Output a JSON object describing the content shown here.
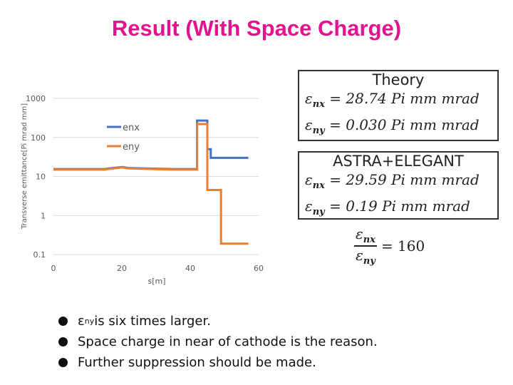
{
  "page": {
    "title": "Result (With Space Charge)"
  },
  "theory": {
    "title": "Theory",
    "rows": [
      {
        "sym": "ε",
        "sub": "nx",
        "rhs": "= 28.74 Pi mm mrad"
      },
      {
        "sym": "ε",
        "sub": "ny",
        "rhs": "= 0.030 Pi mm mrad"
      }
    ]
  },
  "astra": {
    "title": "ASTRA+ELEGANT",
    "rows": [
      {
        "sym": "ε",
        "sub": "nx",
        "rhs": "= 29.59 Pi mm mrad"
      },
      {
        "sym": "ε",
        "sub": "ny",
        "rhs": "= 0.19 Pi mm mrad"
      }
    ]
  },
  "ratio": {
    "num_sym": "ε",
    "num_sub": "nx",
    "den_sym": "ε",
    "den_sub": "ny",
    "rhs": "= 160"
  },
  "bullets": {
    "b1_sym": "ε",
    "b1_sub": "ny",
    "b1_text": " is six times larger.",
    "b2": "Space charge in near of cathode is the reason.",
    "b3": "Further suppression should be made."
  },
  "chart_data": {
    "type": "line",
    "xlabel": "s[m]",
    "ylabel": "Transverse emittance[Pi mrad mm]",
    "xlim": [
      0,
      60
    ],
    "ylim": [
      0.1,
      1000
    ],
    "yscale": "log",
    "x_ticks": [
      "0",
      "20",
      "40",
      "60"
    ],
    "y_ticks": [
      "0.1",
      "1",
      "10",
      "100",
      "1000"
    ],
    "grid": true,
    "legend_position": "top-center",
    "colors": {
      "enx": "#4472c4",
      "eny": "#ed7d31",
      "grid": "#d9d9d9",
      "text": "#595959"
    },
    "series": [
      {
        "name": "enx",
        "x": [
          0,
          15,
          16,
          20,
          22,
          25,
          30,
          35,
          38,
          42,
          42,
          45,
          45,
          46,
          46,
          57
        ],
        "y": [
          15.5,
          15.5,
          16,
          17.5,
          16.5,
          16.2,
          15.8,
          15.5,
          15.5,
          15.5,
          270,
          270,
          50,
          50,
          30,
          30
        ]
      },
      {
        "name": "eny",
        "x": [
          0,
          15,
          16,
          20,
          22,
          25,
          30,
          35,
          38,
          42,
          42,
          45,
          45,
          49,
          49,
          57
        ],
        "y": [
          15,
          15,
          15.5,
          17,
          16,
          15.8,
          15.4,
          15,
          15,
          15,
          220,
          220,
          4.5,
          4.5,
          0.19,
          0.19
        ]
      }
    ]
  }
}
